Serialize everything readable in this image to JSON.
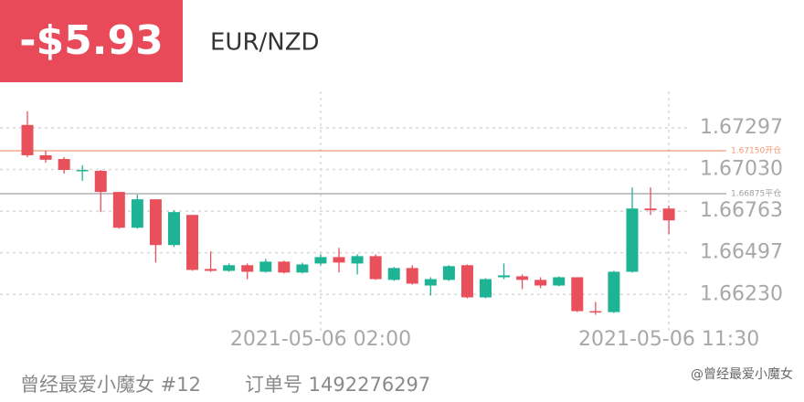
{
  "header": {
    "pnl": "-$5.93",
    "pair": "EUR/NZD"
  },
  "chart_data": {
    "type": "candlestick",
    "categories": [
      null,
      null,
      null,
      null,
      null,
      null,
      null,
      null,
      null,
      null,
      null,
      null,
      null,
      null,
      null,
      null,
      "2021-05-06 02:00",
      null,
      null,
      null,
      null,
      null,
      null,
      null,
      null,
      null,
      null,
      null,
      null,
      null,
      null,
      null,
      null,
      null,
      null,
      "2021-05-06 11:30"
    ],
    "open": [
      1.67315,
      1.67121,
      1.67097,
      1.67021,
      1.67021,
      1.66886,
      1.66657,
      1.66839,
      1.66546,
      1.66739,
      1.66393,
      1.66381,
      1.66417,
      1.66375,
      1.6644,
      1.6637,
      1.66428,
      1.66469,
      1.66428,
      1.66475,
      1.66323,
      1.66399,
      1.66287,
      1.66323,
      1.66417,
      1.66211,
      1.6634,
      1.66346,
      1.66323,
      1.66287,
      1.6634,
      1.66123,
      1.66117,
      1.66375,
      1.6678,
      1.6678
    ],
    "high": [
      1.67403,
      1.6715,
      1.67109,
      1.67056,
      1.67027,
      1.66886,
      1.66869,
      1.66839,
      1.66769,
      1.66739,
      1.66505,
      1.66428,
      1.66428,
      1.66458,
      1.66446,
      1.66434,
      1.66487,
      1.66528,
      1.66487,
      1.66487,
      1.66405,
      1.66417,
      1.6634,
      1.66417,
      1.66422,
      1.66334,
      1.66428,
      1.66358,
      1.6634,
      1.66346,
      1.6634,
      1.66182,
      1.66381,
      1.66915,
      1.66915,
      1.66798
    ],
    "low": [
      1.67109,
      1.67074,
      1.67004,
      1.66957,
      1.66757,
      1.66651,
      1.66651,
      1.66434,
      1.66534,
      1.66381,
      1.66375,
      1.66375,
      1.66328,
      1.6637,
      1.66364,
      1.66364,
      1.66417,
      1.6637,
      1.66358,
      1.66323,
      1.66317,
      1.66293,
      1.66223,
      1.66317,
      1.66205,
      1.66205,
      1.66328,
      1.66264,
      1.6627,
      1.66282,
      1.66117,
      1.661,
      1.66111,
      1.6637,
      1.66739,
      1.66616
    ],
    "close": [
      1.67121,
      1.67092,
      1.67027,
      1.67027,
      1.66886,
      1.66657,
      1.66839,
      1.66546,
      1.66757,
      1.66387,
      1.66381,
      1.66417,
      1.66375,
      1.6644,
      1.6637,
      1.66422,
      1.66469,
      1.66434,
      1.66475,
      1.66328,
      1.66399,
      1.66299,
      1.66328,
      1.66411,
      1.66211,
      1.66328,
      1.66352,
      1.66323,
      1.66287,
      1.6634,
      1.66123,
      1.66117,
      1.66375,
      1.6678,
      1.66769,
      1.66704
    ],
    "up_color": "#1db394",
    "down_color": "#e8505b",
    "ylim": [
      1.6598,
      1.6753
    ],
    "yticks": [
      1.67297,
      {
        "value": 1.6703,
        "label": "1.67030"
      },
      1.66763,
      1.66497,
      {
        "value": 1.6623,
        "label": "1.66230"
      }
    ],
    "grid": true,
    "reference_lines": [
      {
        "value": 1.6715,
        "label": "1.67150开仓",
        "color": "#f29a74"
      },
      {
        "value": 1.66875,
        "label": "1.66875平仓",
        "color": "#a0a0a0"
      }
    ]
  },
  "footer": {
    "user": "曾经最爱小魔女 #12",
    "order": "订单号 1492276297",
    "watermark": "@曾经最爱小魔女"
  }
}
